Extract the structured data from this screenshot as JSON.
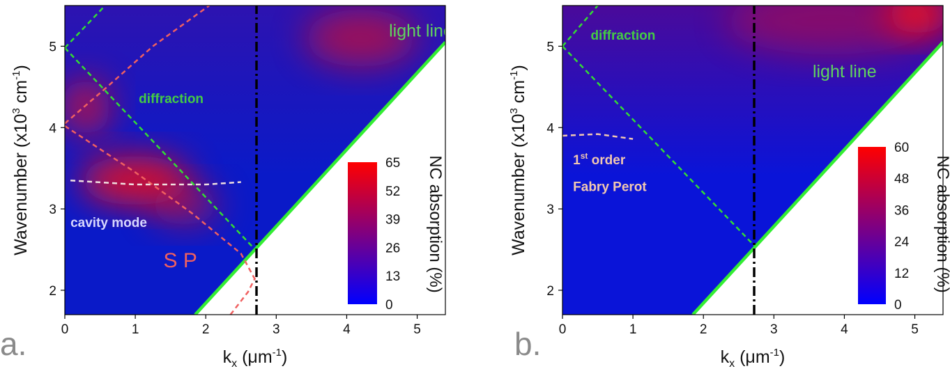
{
  "chart_data": [
    {
      "panel_label": "a.",
      "type": "heatmap",
      "xlabel": "k",
      "xlabel_sub": "x",
      "xlabel_unit": " (μm",
      "xlabel_unit_sup": "-1",
      "xlabel_close": ")",
      "ylabel": "Wavenumber (x10",
      "ylabel_sup": "3",
      "ylabel_unit": " cm",
      "ylabel_unit_sup": "-1",
      "ylabel_close": ")",
      "xlim": [
        0,
        5.4
      ],
      "ylim": [
        1.7,
        5.5
      ],
      "x_ticks": [
        0,
        1,
        2,
        3,
        4,
        5
      ],
      "y_ticks": [
        2,
        3,
        4,
        5
      ],
      "colorbar": {
        "label": "NC absorption (%)",
        "ticks": [
          "65",
          "52",
          "39",
          "26",
          "13",
          "0"
        ],
        "colors": [
          "#ff0000",
          "#0000ff"
        ]
      },
      "annotations": [
        {
          "text": "light line",
          "x": 4.6,
          "y": 5.12,
          "color": "#5fd35f"
        },
        {
          "text": "diffraction",
          "x": 1.05,
          "y": 4.3,
          "color": "#44cc44"
        },
        {
          "text": "cavity mode",
          "x": 0.08,
          "y": 2.78,
          "color": "#d8d8ff"
        },
        {
          "text": "S P",
          "x": 1.4,
          "y": 2.28,
          "color": "#ef6060"
        }
      ],
      "lines": [
        {
          "name": "light line",
          "style": "solid",
          "color": "#33ee33",
          "points": [
            [
              1.85,
              1.7
            ],
            [
              5.4,
              5.05
            ]
          ]
        },
        {
          "name": "diffraction-1",
          "style": "dashed",
          "color": "#33dd33",
          "points": [
            [
              0,
              4.98
            ],
            [
              2.7,
              2.5
            ]
          ]
        },
        {
          "name": "diffraction-2",
          "style": "dashed",
          "color": "#33dd33",
          "points": [
            [
              0,
              4.98
            ],
            [
              0.55,
              5.48
            ]
          ]
        },
        {
          "name": "sp-1",
          "style": "dashed",
          "color": "#f06060",
          "points": [
            [
              0,
              4.05
            ],
            [
              0.6,
              4.5
            ],
            [
              1.25,
              5.0
            ],
            [
              2.05,
              5.5
            ]
          ]
        },
        {
          "name": "sp-2",
          "style": "dashed",
          "color": "#f06060",
          "points": [
            [
              0,
              4.02
            ],
            [
              1.0,
              3.45
            ],
            [
              1.8,
              2.95
            ],
            [
              2.5,
              2.45
            ],
            [
              2.72,
              2.1
            ]
          ]
        },
        {
          "name": "sp-3",
          "style": "dashed",
          "color": "#f06060",
          "points": [
            [
              2.35,
              1.7
            ],
            [
              2.6,
              1.98
            ],
            [
              2.7,
              2.15
            ]
          ]
        },
        {
          "name": "cavity mode",
          "style": "dashed",
          "color": "#f0e0e0",
          "points": [
            [
              0.08,
              3.35
            ],
            [
              1.0,
              3.3
            ],
            [
              2.0,
              3.3
            ],
            [
              2.5,
              3.33
            ]
          ]
        },
        {
          "name": "dash-dot",
          "style": "dashdot",
          "color": "#000000",
          "points": [
            [
              2.72,
              1.7
            ],
            [
              2.72,
              5.5
            ]
          ]
        }
      ],
      "hot_spots": [
        {
          "x": 1.0,
          "y": 3.35,
          "strength": 0.85,
          "rx": 0.8,
          "ry": 0.3
        },
        {
          "x": 0.3,
          "y": 4.25,
          "strength": 0.65,
          "rx": 0.35,
          "ry": 0.35
        },
        {
          "x": 1.7,
          "y": 3.05,
          "strength": 0.5,
          "rx": 0.5,
          "ry": 0.25
        },
        {
          "x": 4.2,
          "y": 5.1,
          "strength": 0.55,
          "rx": 0.8,
          "ry": 0.35
        }
      ]
    },
    {
      "panel_label": "b.",
      "type": "heatmap",
      "xlabel": "k",
      "xlabel_sub": "x",
      "xlabel_unit": " (μm",
      "xlabel_unit_sup": "-1",
      "xlabel_close": ")",
      "ylabel": "Wavenumber (x10",
      "ylabel_sup": "3",
      "ylabel_unit": " cm",
      "ylabel_unit_sup": "-1",
      "ylabel_close": ")",
      "xlim": [
        0,
        5.4
      ],
      "ylim": [
        1.7,
        5.5
      ],
      "x_ticks": [
        0,
        1,
        2,
        3,
        4,
        5
      ],
      "y_ticks": [
        2,
        3,
        4,
        5
      ],
      "colorbar": {
        "label": "NC absorption (%)",
        "ticks": [
          "60",
          "48",
          "36",
          "24",
          "12",
          "0"
        ],
        "colors": [
          "#ff0000",
          "#0000ff"
        ]
      },
      "annotations": [
        {
          "text": "light line",
          "x": 3.55,
          "y": 4.62,
          "color": "#5fd35f"
        },
        {
          "text": "diffraction",
          "x": 0.4,
          "y": 5.08,
          "color": "#44cc44"
        },
        {
          "text": "1st order",
          "x": 0.15,
          "y": 3.55,
          "color": "#f2c8b0"
        },
        {
          "text": "Fabry Perot",
          "x": 0.15,
          "y": 3.22,
          "color": "#f2c8b0"
        }
      ],
      "lines": [
        {
          "name": "light line",
          "style": "solid",
          "color": "#33ee33",
          "points": [
            [
              1.85,
              1.7
            ],
            [
              5.4,
              5.05
            ]
          ]
        },
        {
          "name": "diffraction-1",
          "style": "dashed",
          "color": "#33dd33",
          "points": [
            [
              0,
              5.0
            ],
            [
              2.72,
              2.55
            ]
          ]
        },
        {
          "name": "diffraction-2",
          "style": "dashed",
          "color": "#33dd33",
          "points": [
            [
              0,
              5.0
            ],
            [
              0.5,
              5.5
            ]
          ]
        },
        {
          "name": "fabry perot",
          "style": "dashed",
          "color": "#f2c8b0",
          "points": [
            [
              0,
              3.9
            ],
            [
              0.5,
              3.92
            ],
            [
              1.0,
              3.86
            ]
          ]
        },
        {
          "name": "dash-dot",
          "style": "dashdot",
          "color": "#000000",
          "points": [
            [
              2.72,
              1.7
            ],
            [
              2.72,
              5.5
            ]
          ]
        }
      ],
      "hot_spots": [
        {
          "x": 5.05,
          "y": 5.4,
          "strength": 0.95,
          "rx": 0.45,
          "ry": 0.25
        },
        {
          "x": 3.8,
          "y": 5.3,
          "strength": 0.35,
          "rx": 1.5,
          "ry": 0.4
        }
      ]
    }
  ]
}
